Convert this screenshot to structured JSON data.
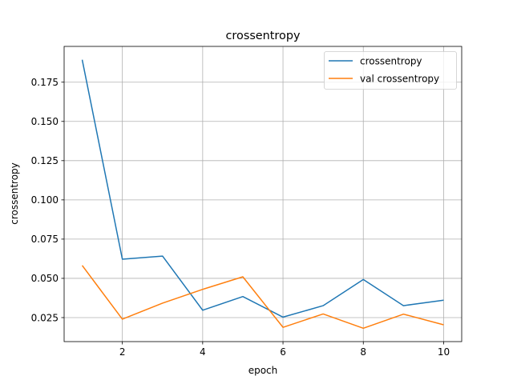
{
  "chart_data": {
    "type": "line",
    "title": "crossentropy",
    "xlabel": "epoch",
    "ylabel": "crossentropy",
    "x": [
      1,
      2,
      3,
      4,
      5,
      6,
      7,
      8,
      9,
      10
    ],
    "series": [
      {
        "name": "crossentropy",
        "color": "#1f77b4",
        "values": [
          0.1893,
          0.0622,
          0.0642,
          0.0297,
          0.0384,
          0.0253,
          0.0326,
          0.0493,
          0.0326,
          0.0361
        ]
      },
      {
        "name": "val crossentropy",
        "color": "#ff7f0e",
        "values": [
          0.0582,
          0.024,
          0.0342,
          0.043,
          0.051,
          0.0188,
          0.0273,
          0.0182,
          0.0272,
          0.0204
        ]
      }
    ],
    "xlim": [
      0.55,
      10.45
    ],
    "ylim": [
      0.0097,
      0.1978
    ],
    "xticks": [
      2,
      4,
      6,
      8,
      10
    ],
    "xtick_labels": [
      "2",
      "4",
      "6",
      "8",
      "10"
    ],
    "yticks": [
      0.025,
      0.05,
      0.075,
      0.1,
      0.125,
      0.15,
      0.175
    ],
    "ytick_labels": [
      "0.025",
      "0.050",
      "0.075",
      "0.100",
      "0.125",
      "0.150",
      "0.175"
    ],
    "grid": true,
    "legend_position": "top-right"
  }
}
